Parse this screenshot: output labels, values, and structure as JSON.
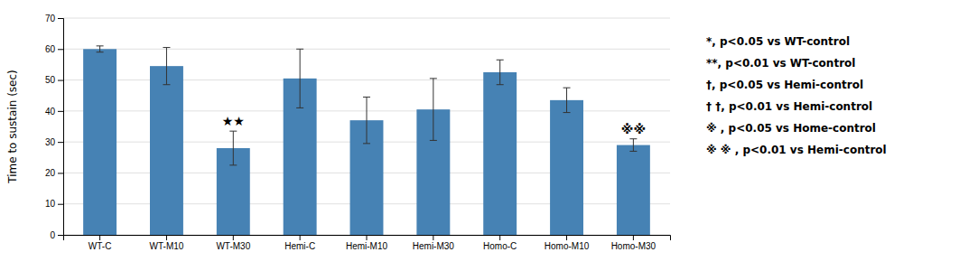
{
  "chart_data": {
    "type": "bar",
    "y_label": "Time to sustain (sec)",
    "categories": [
      "WT-C",
      "WT-M10",
      "WT-M30",
      "Hemi-C",
      "Hemi-M10",
      "Hemi-M30",
      "Homo-C",
      "Homo-M10",
      "Homo-M30"
    ],
    "values": [
      60.0,
      54.5,
      28.0,
      50.5,
      37.0,
      40.5,
      52.5,
      43.5,
      29.0
    ],
    "errors": [
      1.0,
      6.0,
      5.5,
      9.5,
      7.5,
      10.0,
      4.0,
      4.0,
      2.0
    ],
    "ylim": [
      0,
      70
    ],
    "yticks": [
      0,
      10,
      20,
      30,
      40,
      50,
      60,
      70
    ],
    "grid": true,
    "annotations": [
      {
        "text": "★★",
        "x": "WT-M30"
      },
      {
        "text": "※※",
        "x": "Homo-M30"
      },
      {
        "text": "*, p<0.05 vs WT-control"
      },
      {
        "text": "**, p<0.01 vs WT-control"
      },
      {
        "text": "†, p<0.05 vs Hemi-control"
      },
      {
        "text": "† †, p<0.01 vs Hemi-control"
      },
      {
        "text": "※ , p<0.05 vs Home-control"
      },
      {
        "text": "※ ※ , p<0.01 vs Hemi-control"
      }
    ]
  }
}
